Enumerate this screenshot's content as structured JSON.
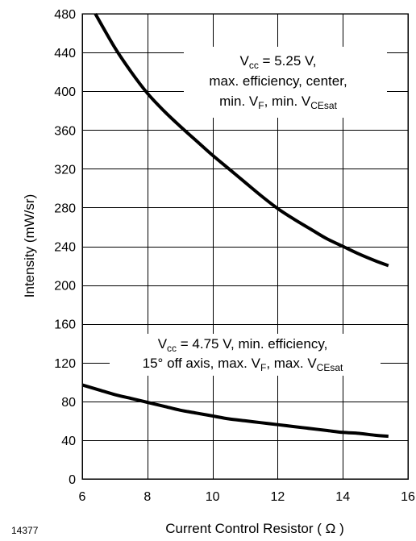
{
  "figure_id": "14377",
  "chart_data": {
    "type": "line",
    "xlabel": "Current Control Resistor ( Ω )",
    "ylabel": "Intensity (mW/sr)",
    "xlim": [
      6,
      16
    ],
    "ylim": [
      0,
      480
    ],
    "xticks": [
      6,
      8,
      10,
      12,
      14,
      16
    ],
    "yticks": [
      0,
      40,
      80,
      120,
      160,
      200,
      240,
      280,
      320,
      360,
      400,
      440,
      480
    ],
    "grid": true,
    "series": [
      {
        "x": [
          6.4,
          7.0,
          7.5,
          8.0,
          8.5,
          9.0,
          9.5,
          10.0,
          10.5,
          11.0,
          11.5,
          12.0,
          12.5,
          13.0,
          13.5,
          14.0,
          14.5,
          15.0,
          15.4
        ],
        "y": [
          480,
          445,
          420,
          398,
          380,
          364,
          349,
          334,
          320,
          306,
          292,
          279,
          268,
          258,
          248,
          240,
          232,
          225,
          220
        ]
      },
      {
        "x": [
          6.0,
          6.5,
          7.0,
          7.5,
          8.0,
          8.5,
          9.0,
          9.5,
          10.0,
          10.5,
          11.0,
          11.5,
          12.0,
          12.5,
          13.0,
          13.5,
          14.0,
          14.5,
          15.0,
          15.4
        ],
        "y": [
          97,
          92,
          87,
          83,
          79,
          75,
          71,
          68,
          65,
          62,
          60,
          58,
          56,
          54,
          52,
          50,
          48,
          47,
          45,
          44
        ]
      }
    ],
    "annotations": [
      {
        "lines": [
          [
            {
              "t": "V"
            },
            {
              "t": "cc",
              "sub": true
            },
            {
              "t": " = 5.25 V,"
            }
          ],
          [
            {
              "t": "max. efficiency, center,"
            }
          ],
          [
            {
              "t": "min. V"
            },
            {
              "t": "F",
              "sub": true
            },
            {
              "t": ", min. V"
            },
            {
              "t": "CEsat",
              "sub": true
            }
          ]
        ]
      },
      {
        "lines": [
          [
            {
              "t": "V"
            },
            {
              "t": "cc",
              "sub": true
            },
            {
              "t": " = 4.75 V, min. efficiency,"
            }
          ],
          [
            {
              "t": "15° off axis, max. V"
            },
            {
              "t": "F",
              "sub": true
            },
            {
              "t": ", max. V"
            },
            {
              "t": "CEsat",
              "sub": true
            }
          ]
        ]
      }
    ]
  }
}
